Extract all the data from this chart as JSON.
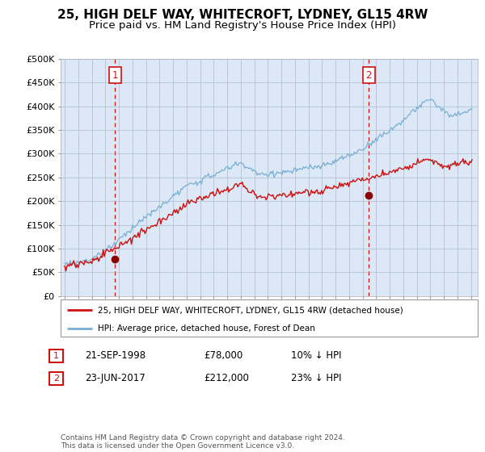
{
  "title": "25, HIGH DELF WAY, WHITECROFT, LYDNEY, GL15 4RW",
  "subtitle": "Price paid vs. HM Land Registry's House Price Index (HPI)",
  "ylim": [
    0,
    500000
  ],
  "yticks": [
    0,
    50000,
    100000,
    150000,
    200000,
    250000,
    300000,
    350000,
    400000,
    450000,
    500000
  ],
  "ytick_labels": [
    "£0",
    "£50K",
    "£100K",
    "£150K",
    "£200K",
    "£250K",
    "£300K",
    "£350K",
    "£400K",
    "£450K",
    "£500K"
  ],
  "xlim_left": 1994.7,
  "xlim_right": 2025.5,
  "background_color": "#ffffff",
  "plot_bg_color": "#dce8f5",
  "grid_color": "#aabbcc",
  "line_color_hpi": "#7aafd4",
  "line_color_price": "#cc1111",
  "marker1_x": 1998.72,
  "marker1_y": 78000,
  "marker2_x": 2017.46,
  "marker2_y": 212000,
  "marker1_date": "21-SEP-1998",
  "marker1_price": "£78,000",
  "marker1_pct": "10% ↓ HPI",
  "marker2_date": "23-JUN-2017",
  "marker2_price": "£212,000",
  "marker2_pct": "23% ↓ HPI",
  "legend_line1": "25, HIGH DELF WAY, WHITECROFT, LYDNEY, GL15 4RW (detached house)",
  "legend_line2": "HPI: Average price, detached house, Forest of Dean",
  "footer": "Contains HM Land Registry data © Crown copyright and database right 2024.\nThis data is licensed under the Open Government Licence v3.0.",
  "title_fontsize": 11,
  "subtitle_fontsize": 9.5
}
